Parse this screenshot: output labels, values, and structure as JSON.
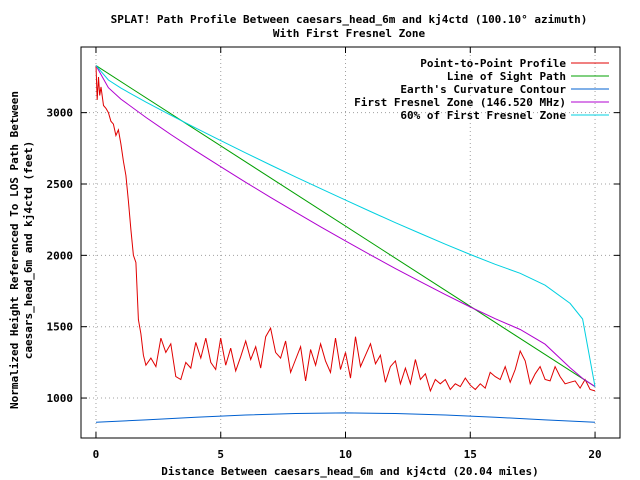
{
  "chart_data": {
    "type": "line",
    "title": "SPLAT! Path Profile Between caesars_head_6m and kj4ctd (100.10° azimuth)",
    "subtitle": "With First Fresnel Zone",
    "xlabel": "Distance Between caesars_head_6m and kj4ctd (20.04 miles)",
    "ylabel_line1": "Normalized Height Referenced To LOS Path Between",
    "ylabel_line2": "caesars_head_6m and kj4ctd (feet)",
    "xlim": [
      -0.6,
      21
    ],
    "ylim": [
      720,
      3460
    ],
    "x_ticks": [
      0,
      5,
      10,
      15,
      20
    ],
    "y_ticks": [
      1000,
      1500,
      2000,
      2500,
      3000
    ],
    "x_tick_labels": [
      "0",
      "5",
      "10",
      "15",
      "20"
    ],
    "y_tick_labels": [
      "1000",
      "1500",
      "2000",
      "2500",
      "3000"
    ],
    "grid": true,
    "legend_position": "top-right",
    "series": [
      {
        "name": "Point-to-Point Profile",
        "color": "#e00000",
        "x": [
          0,
          0.05,
          0.1,
          0.15,
          0.2,
          0.3,
          0.4,
          0.5,
          0.6,
          0.7,
          0.8,
          0.9,
          1.0,
          1.1,
          1.2,
          1.3,
          1.4,
          1.5,
          1.6,
          1.7,
          1.8,
          1.9,
          2.0,
          2.2,
          2.4,
          2.6,
          2.8,
          3.0,
          3.2,
          3.4,
          3.6,
          3.8,
          4.0,
          4.2,
          4.4,
          4.6,
          4.8,
          5.0,
          5.2,
          5.4,
          5.6,
          5.8,
          6.0,
          6.2,
          6.4,
          6.6,
          6.8,
          7.0,
          7.2,
          7.4,
          7.6,
          7.8,
          8.0,
          8.2,
          8.4,
          8.6,
          8.8,
          9.0,
          9.2,
          9.4,
          9.6,
          9.8,
          10.0,
          10.2,
          10.4,
          10.6,
          10.8,
          11.0,
          11.2,
          11.4,
          11.6,
          11.8,
          12.0,
          12.2,
          12.4,
          12.6,
          12.8,
          13.0,
          13.2,
          13.4,
          13.6,
          13.8,
          14.0,
          14.2,
          14.4,
          14.6,
          14.8,
          15.0,
          15.2,
          15.4,
          15.6,
          15.8,
          16.0,
          16.2,
          16.4,
          16.6,
          16.8,
          17.0,
          17.2,
          17.4,
          17.6,
          17.8,
          18.0,
          18.2,
          18.4,
          18.6,
          18.8,
          19.0,
          19.2,
          19.4,
          19.6,
          19.8,
          20.0
        ],
        "y": [
          3330,
          3090,
          3250,
          3120,
          3180,
          3050,
          3030,
          3000,
          2940,
          2920,
          2840,
          2880,
          2780,
          2660,
          2560,
          2380,
          2180,
          2000,
          1950,
          1550,
          1450,
          1300,
          1230,
          1280,
          1220,
          1420,
          1320,
          1380,
          1150,
          1130,
          1250,
          1210,
          1390,
          1280,
          1420,
          1250,
          1200,
          1420,
          1230,
          1350,
          1190,
          1290,
          1400,
          1270,
          1360,
          1210,
          1430,
          1490,
          1320,
          1280,
          1400,
          1180,
          1270,
          1360,
          1120,
          1340,
          1230,
          1380,
          1260,
          1180,
          1420,
          1200,
          1320,
          1140,
          1430,
          1220,
          1300,
          1380,
          1240,
          1300,
          1110,
          1220,
          1260,
          1100,
          1210,
          1100,
          1270,
          1130,
          1170,
          1050,
          1130,
          1100,
          1130,
          1060,
          1100,
          1080,
          1140,
          1090,
          1060,
          1100,
          1070,
          1180,
          1150,
          1130,
          1220,
          1110,
          1200,
          1330,
          1260,
          1100,
          1170,
          1220,
          1130,
          1120,
          1220,
          1150,
          1100,
          1110,
          1120,
          1070,
          1130,
          1060,
          1050
        ]
      },
      {
        "name": "Line of Sight Path",
        "color": "#00a000",
        "x": [
          0,
          20
        ],
        "y": [
          3330,
          1080
        ]
      },
      {
        "name": "Earth's Curvature Contour",
        "color": "#0060d0",
        "x": [
          0,
          2,
          4,
          6,
          8,
          10,
          12,
          14,
          16,
          18,
          20
        ],
        "y": [
          830,
          847,
          866,
          881,
          892,
          896,
          892,
          881,
          866,
          847,
          830
        ]
      },
      {
        "name": "First Fresnel Zone (146.520 MHz)",
        "color": "#b000d0",
        "x": [
          0,
          0.5,
          1,
          2,
          3,
          4,
          5,
          6,
          7,
          8,
          9,
          10,
          11,
          12,
          13,
          14,
          15,
          16,
          17,
          18,
          19,
          19.5,
          20
        ],
        "y": [
          3330,
          3175,
          3095,
          2967,
          2847,
          2732,
          2621,
          2512,
          2406,
          2302,
          2200,
          2101,
          2003,
          1907,
          1815,
          1725,
          1638,
          1556,
          1480,
          1377,
          1212,
          1138,
          1080
        ]
      },
      {
        "name": "60% of First Fresnel Zone",
        "color": "#00d0e0",
        "x": [
          0,
          0.5,
          1,
          2,
          3,
          4,
          5,
          6,
          7,
          8,
          9,
          10,
          11,
          12,
          13,
          14,
          15,
          16,
          17,
          18,
          19,
          19.5,
          20
        ],
        "y": [
          3330,
          3229,
          3172,
          3074,
          2982,
          2892,
          2804,
          2718,
          2633,
          2550,
          2468,
          2387,
          2307,
          2229,
          2153,
          2078,
          2006,
          1937,
          1874,
          1791,
          1663,
          1554,
          1080
        ]
      }
    ]
  }
}
